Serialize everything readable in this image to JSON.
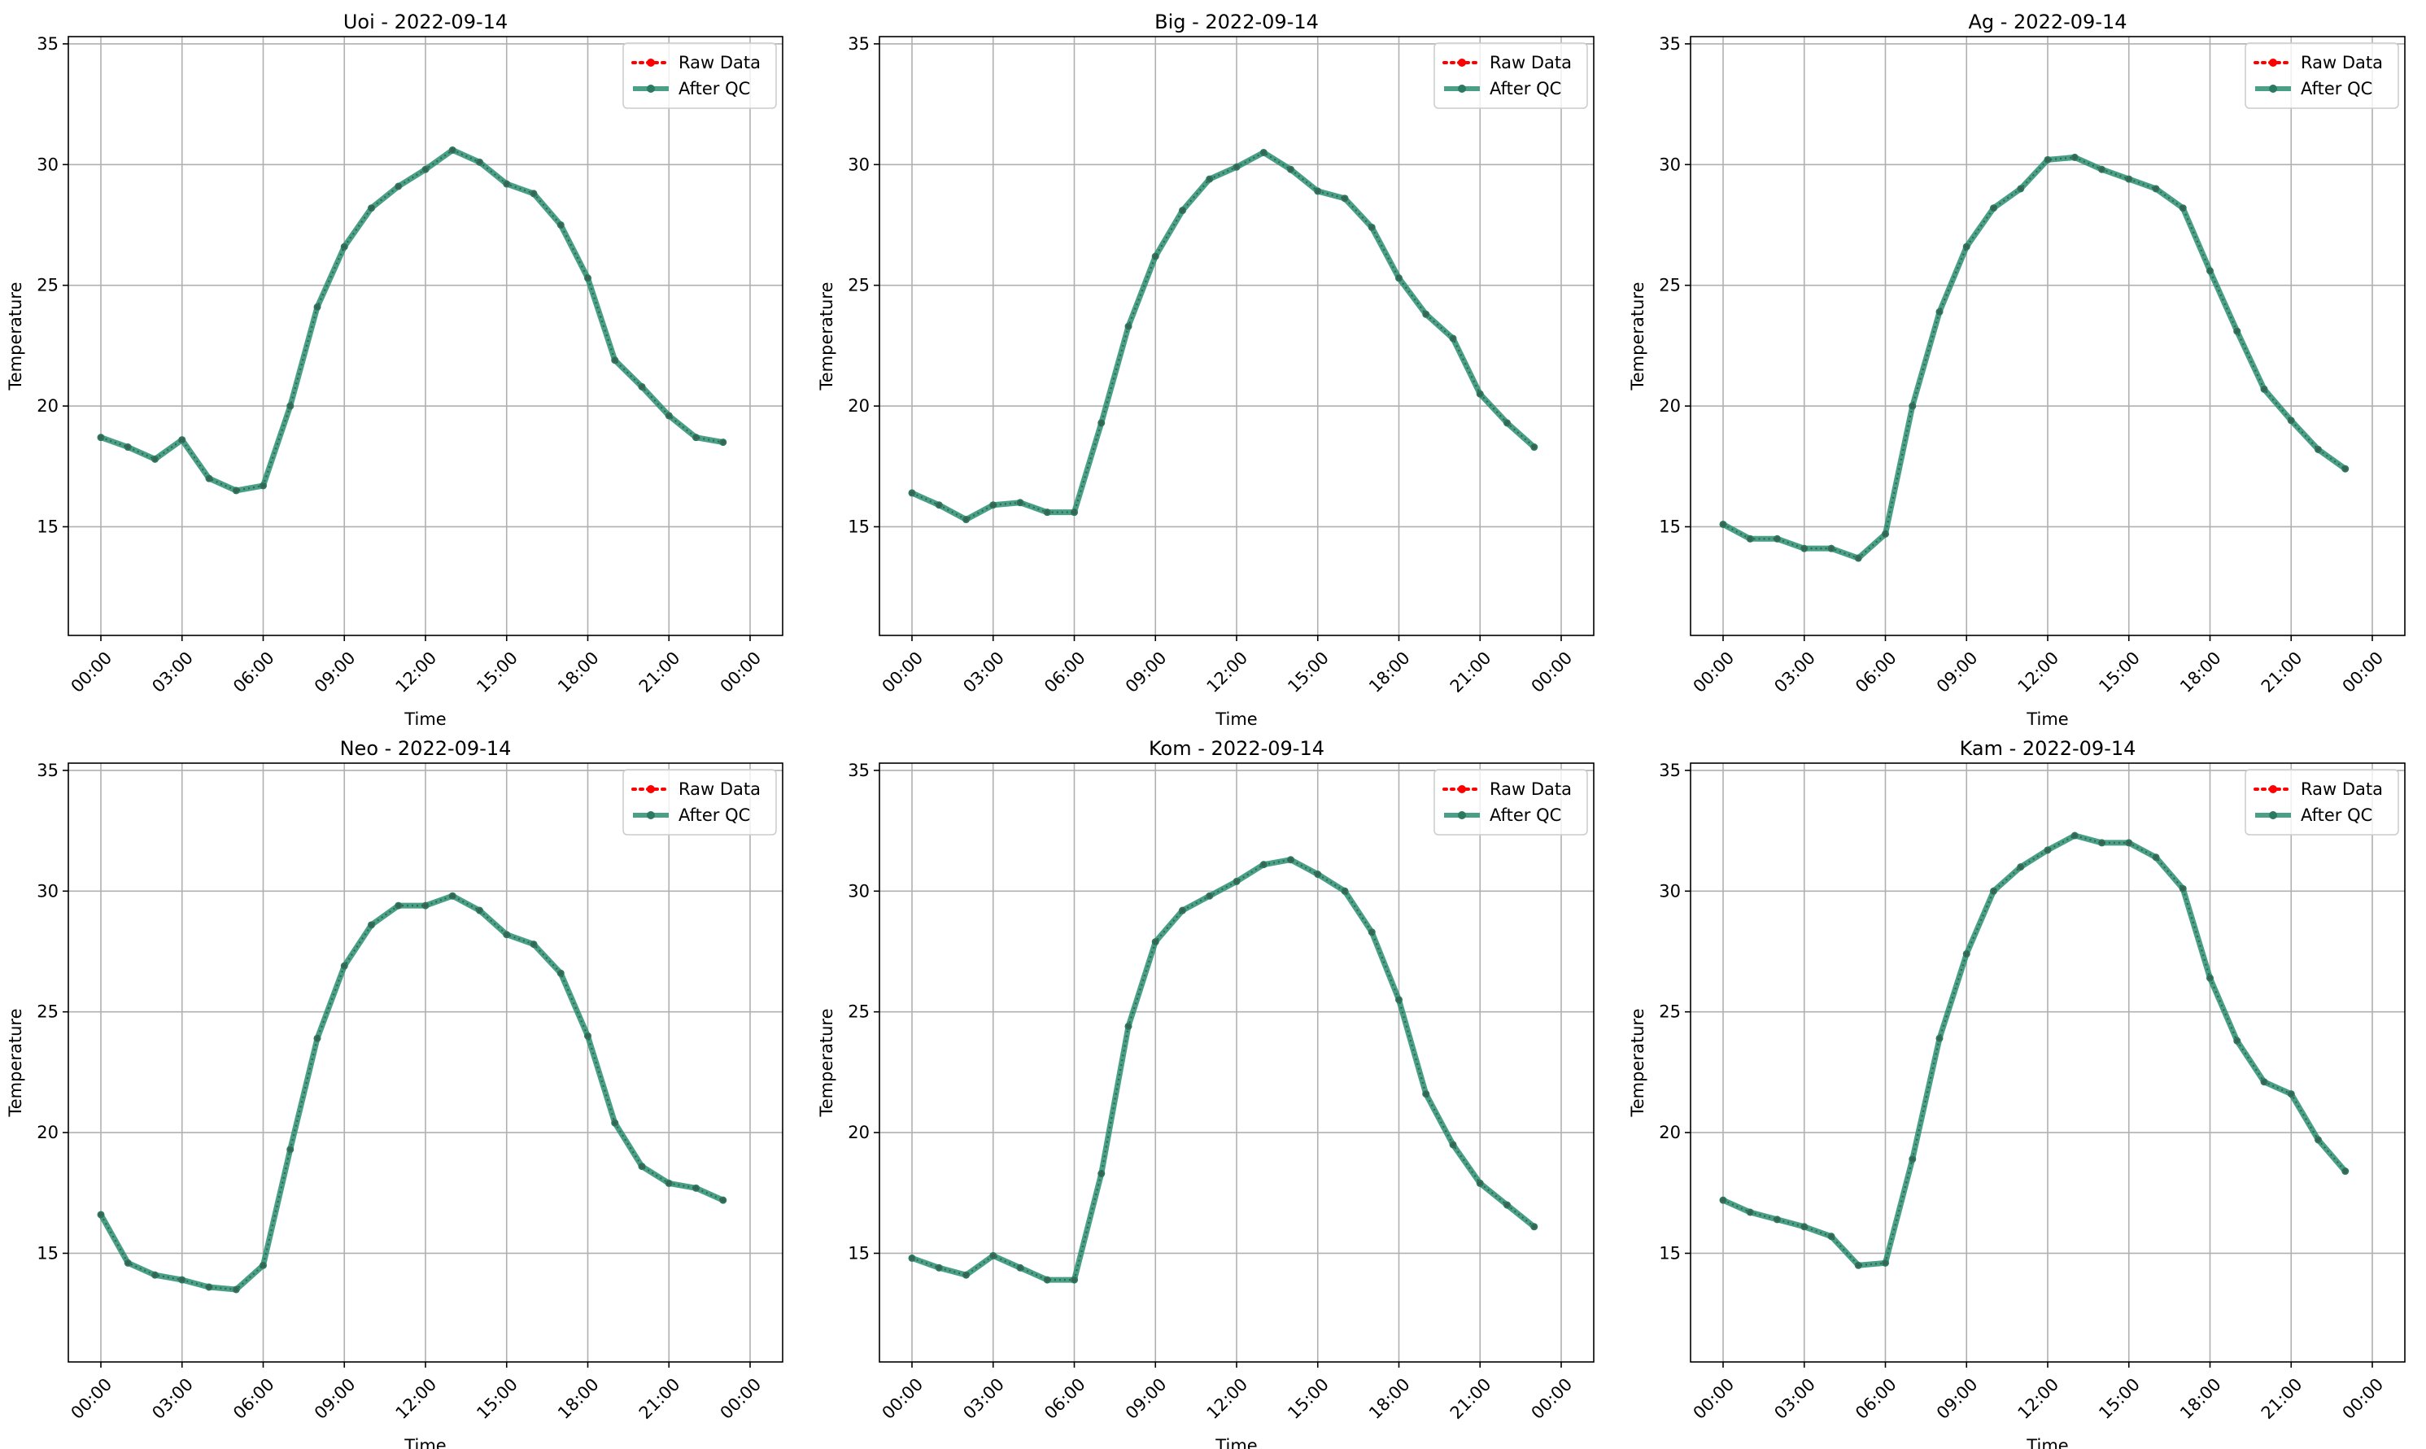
{
  "figure": {
    "x_tick_labels": [
      "00:00",
      "03:00",
      "06:00",
      "09:00",
      "12:00",
      "15:00",
      "18:00",
      "21:00",
      "00:00"
    ],
    "y_tick_labels": [
      "15",
      "20",
      "25",
      "30",
      "35"
    ],
    "legend": {
      "raw_label": "Raw Data",
      "qc_label": "After QC"
    }
  },
  "chart_data": [
    {
      "type": "line",
      "title": "Uoi - 2022-09-14",
      "xlabel": "Time",
      "ylabel": "Temperature",
      "x": [
        "00:00",
        "01:00",
        "02:00",
        "03:00",
        "04:00",
        "05:00",
        "06:00",
        "07:00",
        "08:00",
        "09:00",
        "10:00",
        "11:00",
        "12:00",
        "13:00",
        "14:00",
        "15:00",
        "16:00",
        "17:00",
        "18:00",
        "19:00",
        "20:00",
        "21:00",
        "22:00",
        "23:00"
      ],
      "xlim": [
        "2022-09-14 00:00",
        "2022-09-15 00:00"
      ],
      "ylim": [
        10.5,
        35.3
      ],
      "grid": true,
      "legend_position": "top-right",
      "series": [
        {
          "name": "Raw Data",
          "color": "#ff0000",
          "style": "dotted-with-circle-markers",
          "values": [
            18.7,
            18.3,
            17.8,
            18.6,
            17.0,
            16.5,
            16.7,
            20.0,
            24.1,
            26.6,
            28.2,
            29.1,
            29.8,
            30.6,
            30.1,
            29.2,
            28.8,
            27.5,
            25.3,
            21.9,
            20.8,
            19.6,
            18.7,
            18.5
          ]
        },
        {
          "name": "After QC",
          "color": "#2a8f72",
          "style": "solid-with-circle-markers",
          "values": [
            18.7,
            18.3,
            17.8,
            18.6,
            17.0,
            16.5,
            16.7,
            20.0,
            24.1,
            26.6,
            28.2,
            29.1,
            29.8,
            30.6,
            30.1,
            29.2,
            28.8,
            27.5,
            25.3,
            21.9,
            20.8,
            19.6,
            18.7,
            18.5
          ]
        }
      ]
    },
    {
      "type": "line",
      "title": "Big - 2022-09-14",
      "xlabel": "Time",
      "ylabel": "Temperature",
      "x": [
        "00:00",
        "01:00",
        "02:00",
        "03:00",
        "04:00",
        "05:00",
        "06:00",
        "07:00",
        "08:00",
        "09:00",
        "10:00",
        "11:00",
        "12:00",
        "13:00",
        "14:00",
        "15:00",
        "16:00",
        "17:00",
        "18:00",
        "19:00",
        "20:00",
        "21:00",
        "22:00",
        "23:00"
      ],
      "xlim": [
        "2022-09-14 00:00",
        "2022-09-15 00:00"
      ],
      "ylim": [
        10.5,
        35.3
      ],
      "grid": true,
      "legend_position": "top-right",
      "series": [
        {
          "name": "Raw Data",
          "color": "#ff0000",
          "style": "dotted-with-circle-markers",
          "values": [
            16.4,
            15.9,
            15.3,
            15.9,
            16.0,
            15.6,
            15.6,
            19.3,
            23.3,
            26.2,
            28.1,
            29.4,
            29.9,
            30.5,
            29.8,
            28.9,
            28.6,
            27.4,
            25.3,
            23.8,
            22.8,
            20.5,
            19.3,
            18.3
          ]
        },
        {
          "name": "After QC",
          "color": "#2a8f72",
          "style": "solid-with-circle-markers",
          "values": [
            16.4,
            15.9,
            15.3,
            15.9,
            16.0,
            15.6,
            15.6,
            19.3,
            23.3,
            26.2,
            28.1,
            29.4,
            29.9,
            30.5,
            29.8,
            28.9,
            28.6,
            27.4,
            25.3,
            23.8,
            22.8,
            20.5,
            19.3,
            18.3
          ]
        }
      ]
    },
    {
      "type": "line",
      "title": "Ag - 2022-09-14",
      "xlabel": "Time",
      "ylabel": "Temperature",
      "x": [
        "00:00",
        "01:00",
        "02:00",
        "03:00",
        "04:00",
        "05:00",
        "06:00",
        "07:00",
        "08:00",
        "09:00",
        "10:00",
        "11:00",
        "12:00",
        "13:00",
        "14:00",
        "15:00",
        "16:00",
        "17:00",
        "18:00",
        "19:00",
        "20:00",
        "21:00",
        "22:00",
        "23:00"
      ],
      "xlim": [
        "2022-09-14 00:00",
        "2022-09-15 00:00"
      ],
      "ylim": [
        10.5,
        35.3
      ],
      "grid": true,
      "legend_position": "top-right",
      "series": [
        {
          "name": "Raw Data",
          "color": "#ff0000",
          "style": "dotted-with-circle-markers",
          "values": [
            15.1,
            14.5,
            14.5,
            14.1,
            14.1,
            13.7,
            14.7,
            20.0,
            23.9,
            26.6,
            28.2,
            29.0,
            30.2,
            30.3,
            29.8,
            29.4,
            29.0,
            28.2,
            25.6,
            23.1,
            20.7,
            19.4,
            18.2,
            17.4
          ]
        },
        {
          "name": "After QC",
          "color": "#2a8f72",
          "style": "solid-with-circle-markers",
          "values": [
            15.1,
            14.5,
            14.5,
            14.1,
            14.1,
            13.7,
            14.7,
            20.0,
            23.9,
            26.6,
            28.2,
            29.0,
            30.2,
            30.3,
            29.8,
            29.4,
            29.0,
            28.2,
            25.6,
            23.1,
            20.7,
            19.4,
            18.2,
            17.4
          ]
        }
      ]
    },
    {
      "type": "line",
      "title": "Neo - 2022-09-14",
      "xlabel": "Time",
      "ylabel": "Temperature",
      "x": [
        "00:00",
        "01:00",
        "02:00",
        "03:00",
        "04:00",
        "05:00",
        "06:00",
        "07:00",
        "08:00",
        "09:00",
        "10:00",
        "11:00",
        "12:00",
        "13:00",
        "14:00",
        "15:00",
        "16:00",
        "17:00",
        "18:00",
        "19:00",
        "20:00",
        "21:00",
        "22:00",
        "23:00"
      ],
      "xlim": [
        "2022-09-14 00:00",
        "2022-09-15 00:00"
      ],
      "ylim": [
        10.5,
        35.3
      ],
      "grid": true,
      "legend_position": "top-right",
      "series": [
        {
          "name": "Raw Data",
          "color": "#ff0000",
          "style": "dotted-with-circle-markers",
          "values": [
            16.6,
            14.6,
            14.1,
            13.9,
            13.6,
            13.5,
            14.5,
            19.3,
            23.9,
            26.9,
            28.6,
            29.4,
            29.4,
            29.8,
            29.2,
            28.2,
            27.8,
            26.6,
            24.0,
            20.4,
            18.6,
            17.9,
            17.7,
            17.2
          ]
        },
        {
          "name": "After QC",
          "color": "#2a8f72",
          "style": "solid-with-circle-markers",
          "values": [
            16.6,
            14.6,
            14.1,
            13.9,
            13.6,
            13.5,
            14.5,
            19.3,
            23.9,
            26.9,
            28.6,
            29.4,
            29.4,
            29.8,
            29.2,
            28.2,
            27.8,
            26.6,
            24.0,
            20.4,
            18.6,
            17.9,
            17.7,
            17.2
          ]
        }
      ]
    },
    {
      "type": "line",
      "title": "Kom - 2022-09-14",
      "xlabel": "Time",
      "ylabel": "Temperature",
      "x": [
        "00:00",
        "01:00",
        "02:00",
        "03:00",
        "04:00",
        "05:00",
        "06:00",
        "07:00",
        "08:00",
        "09:00",
        "10:00",
        "11:00",
        "12:00",
        "13:00",
        "14:00",
        "15:00",
        "16:00",
        "17:00",
        "18:00",
        "19:00",
        "20:00",
        "21:00",
        "22:00",
        "23:00"
      ],
      "xlim": [
        "2022-09-14 00:00",
        "2022-09-15 00:00"
      ],
      "ylim": [
        10.5,
        35.3
      ],
      "grid": true,
      "legend_position": "top-right",
      "series": [
        {
          "name": "Raw Data",
          "color": "#ff0000",
          "style": "dotted-with-circle-markers",
          "values": [
            14.8,
            14.4,
            14.1,
            14.9,
            14.4,
            13.9,
            13.9,
            18.3,
            24.4,
            27.9,
            29.2,
            29.8,
            30.4,
            31.1,
            31.3,
            30.7,
            30.0,
            28.3,
            25.5,
            21.6,
            19.5,
            17.9,
            17.0,
            16.1
          ]
        },
        {
          "name": "After QC",
          "color": "#2a8f72",
          "style": "solid-with-circle-markers",
          "values": [
            14.8,
            14.4,
            14.1,
            14.9,
            14.4,
            13.9,
            13.9,
            18.3,
            24.4,
            27.9,
            29.2,
            29.8,
            30.4,
            31.1,
            31.3,
            30.7,
            30.0,
            28.3,
            25.5,
            21.6,
            19.5,
            17.9,
            17.0,
            16.1
          ]
        }
      ]
    },
    {
      "type": "line",
      "title": "Kam - 2022-09-14",
      "xlabel": "Time",
      "ylabel": "Temperature",
      "x": [
        "00:00",
        "01:00",
        "02:00",
        "03:00",
        "04:00",
        "05:00",
        "06:00",
        "07:00",
        "08:00",
        "09:00",
        "10:00",
        "11:00",
        "12:00",
        "13:00",
        "14:00",
        "15:00",
        "16:00",
        "17:00",
        "18:00",
        "19:00",
        "20:00",
        "21:00",
        "22:00",
        "23:00"
      ],
      "xlim": [
        "2022-09-14 00:00",
        "2022-09-15 00:00"
      ],
      "ylim": [
        10.5,
        35.3
      ],
      "grid": true,
      "legend_position": "top-right",
      "series": [
        {
          "name": "Raw Data",
          "color": "#ff0000",
          "style": "dotted-with-circle-markers",
          "values": [
            17.2,
            16.7,
            16.4,
            16.1,
            15.7,
            14.5,
            14.6,
            18.9,
            23.9,
            27.4,
            30.0,
            31.0,
            31.7,
            32.3,
            32.0,
            32.0,
            31.4,
            30.1,
            26.4,
            23.8,
            22.1,
            21.6,
            19.7,
            18.4
          ]
        },
        {
          "name": "After QC",
          "color": "#2a8f72",
          "style": "solid-with-circle-markers",
          "values": [
            17.2,
            16.7,
            16.4,
            16.1,
            15.7,
            14.5,
            14.6,
            18.9,
            23.9,
            27.4,
            30.0,
            31.0,
            31.7,
            32.3,
            32.0,
            32.0,
            31.4,
            30.1,
            26.4,
            23.8,
            22.1,
            21.6,
            19.7,
            18.4
          ]
        }
      ]
    }
  ]
}
